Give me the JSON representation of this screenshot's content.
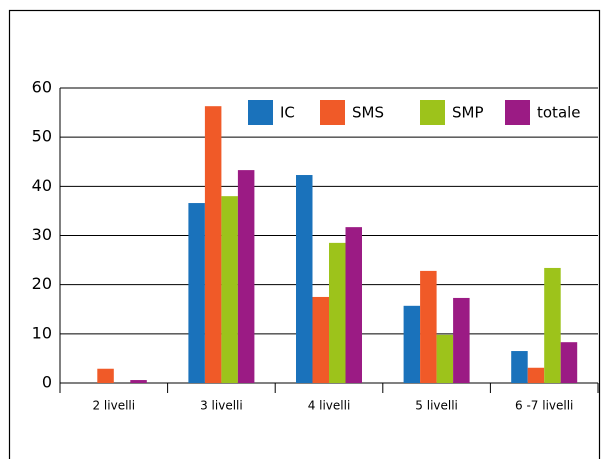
{
  "chart_data": {
    "type": "bar",
    "categories": [
      "2 livelli",
      "3 livelli",
      "4 livelli",
      "5 livelli",
      "6 -7 livelli"
    ],
    "series": [
      {
        "name": "IC",
        "color": "#1a72bb",
        "values": [
          0,
          36.6,
          42.3,
          15.7,
          6.5
        ]
      },
      {
        "name": "SMS",
        "color": "#f05a28",
        "values": [
          2.9,
          56.3,
          17.5,
          22.8,
          3.1
        ]
      },
      {
        "name": "SMP",
        "color": "#9dc31b",
        "values": [
          0,
          38.0,
          28.5,
          9.8,
          23.4
        ]
      },
      {
        "name": "totale",
        "color": "#9b1b84",
        "values": [
          0.6,
          43.3,
          31.7,
          17.3,
          8.3
        ]
      }
    ],
    "ylim": [
      0,
      60
    ],
    "yticks": [
      0,
      10,
      20,
      30,
      40,
      50,
      60
    ],
    "grid": true,
    "legend": "top-right"
  }
}
